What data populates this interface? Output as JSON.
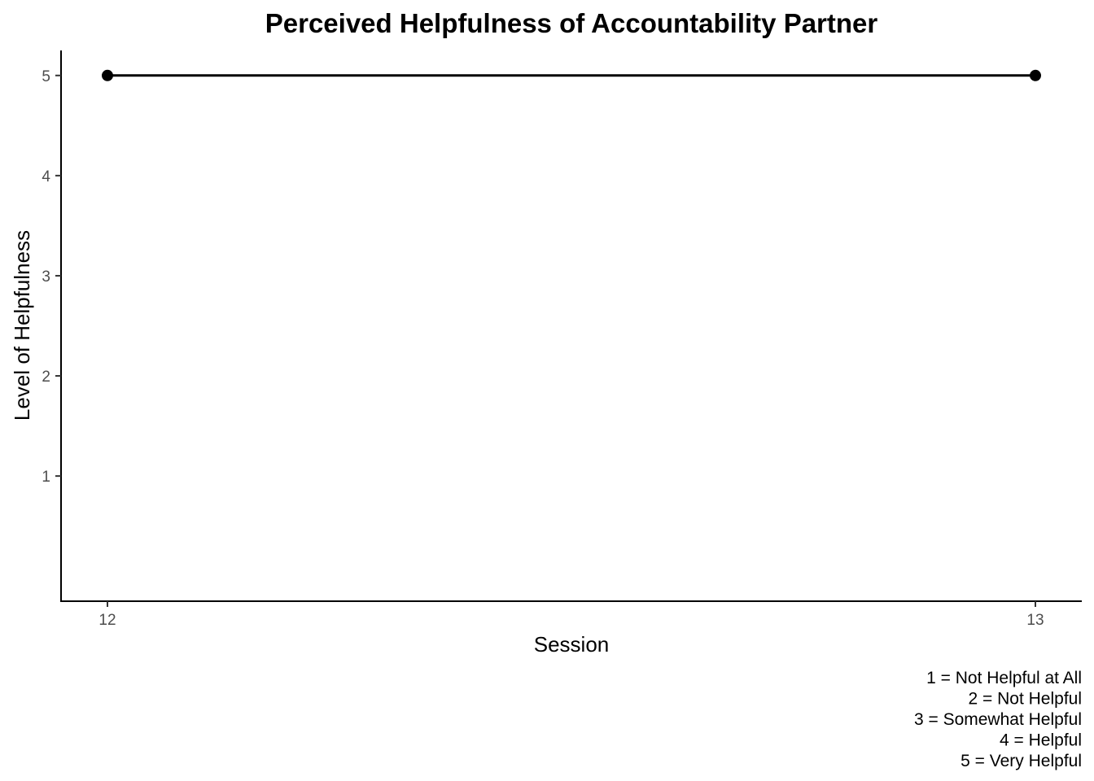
{
  "chart_data": {
    "type": "line",
    "title": "Perceived Helpfulness of Accountability Partner",
    "xlabel": "Session",
    "ylabel": "Level of Helpfulness",
    "x": [
      12,
      13
    ],
    "series": [
      {
        "values": [
          5,
          5
        ]
      }
    ],
    "x_ticks": [
      "12",
      "13"
    ],
    "y_ticks": [
      "1",
      "2",
      "3",
      "4",
      "5"
    ],
    "xlim": [
      11.95,
      13.05
    ],
    "ylim": [
      -0.25,
      5.25
    ],
    "grid": false,
    "caption": [
      "1 = Not Helpful at All",
      "2 = Not Helpful",
      "3 = Somewhat Helpful",
      "4 = Helpful",
      "5 = Very Helpful"
    ],
    "colors": {
      "line": "#000000",
      "points": "#000000",
      "tick_labels": "#4d4d4d"
    }
  }
}
